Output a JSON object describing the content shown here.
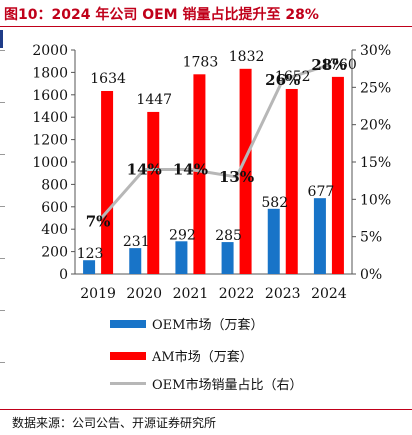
{
  "figure": {
    "title": "图10：2024 年公司 OEM 销量占比提升至 28%",
    "source": "数据来源：公司公告、开源证券研究所"
  },
  "colors": {
    "oem": "#1874c8",
    "am": "#ff0000",
    "share_line": "#b7b7b7",
    "title": "#c0001a"
  },
  "chart_data": {
    "type": "bar",
    "categories": [
      "2019",
      "2020",
      "2021",
      "2022",
      "2023",
      "2024"
    ],
    "series": [
      {
        "name": "OEM市场（万套）",
        "type": "bar",
        "axis": "left",
        "values": [
          123,
          231,
          292,
          285,
          582,
          677
        ],
        "labels": [
          "123",
          "231",
          "292",
          "285",
          "582",
          "677"
        ]
      },
      {
        "name": "AM市场（万套）",
        "type": "bar",
        "axis": "left",
        "values": [
          1634,
          1447,
          1783,
          1832,
          1652,
          1760
        ],
        "labels": [
          "1634",
          "1447",
          "1783",
          "1832",
          "1652",
          "1760"
        ]
      },
      {
        "name": "OEM市场销量占比（右）",
        "type": "line",
        "axis": "right",
        "values": [
          7,
          14,
          14,
          13,
          26,
          28
        ],
        "labels": [
          "7%",
          "14%",
          "14%",
          "13%",
          "26%",
          "28%"
        ]
      }
    ],
    "y_left": {
      "min": 0,
      "max": 2000,
      "step": 200,
      "ticks": [
        "0",
        "200",
        "400",
        "600",
        "800",
        "1000",
        "1200",
        "1400",
        "1600",
        "1800",
        "2000"
      ]
    },
    "y_right": {
      "min": 0,
      "max": 30,
      "step": 5,
      "ticks": [
        "0%",
        "5%",
        "10%",
        "15%",
        "20%",
        "25%",
        "30%"
      ]
    },
    "legend_position": "bottom",
    "grid": false
  }
}
